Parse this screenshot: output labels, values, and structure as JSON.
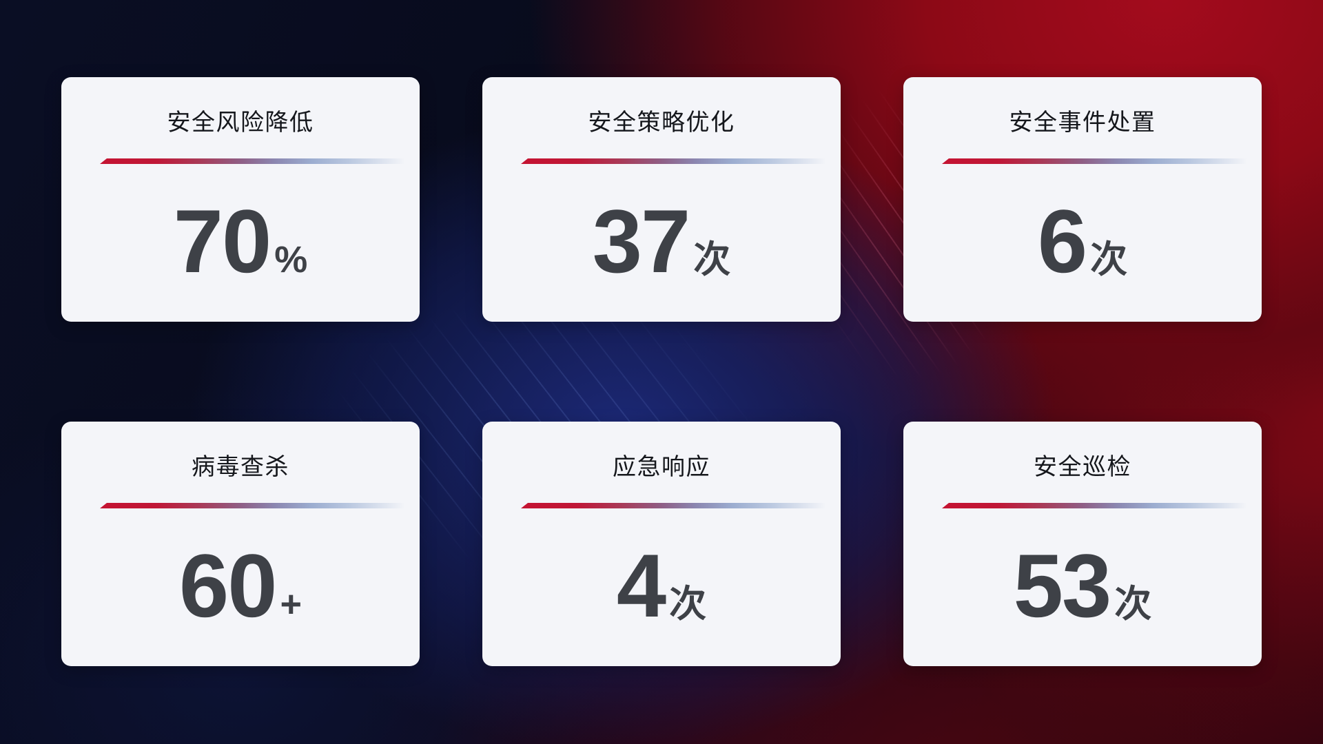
{
  "page": {
    "background_base_color": "#0a0e24",
    "background_red_color": "#8c0916",
    "background_blue_color": "#1c2a7a",
    "card_background_color": "#f4f5f9",
    "divider_gradient_start": "#c41332",
    "divider_gradient_end": "#bac8e0",
    "title_color": "#15171c",
    "value_color": "#3e4147"
  },
  "cards": [
    {
      "title": "安全风险降低",
      "value": "70",
      "suffix": "%"
    },
    {
      "title": "安全策略优化",
      "value": "37",
      "suffix": "次"
    },
    {
      "title": "安全事件处置",
      "value": "6",
      "suffix": "次"
    },
    {
      "title": "病毒查杀",
      "value": "60",
      "suffix": "+"
    },
    {
      "title": "应急响应",
      "value": "4",
      "suffix": "次"
    },
    {
      "title": "安全巡检",
      "value": "53",
      "suffix": "次"
    }
  ]
}
